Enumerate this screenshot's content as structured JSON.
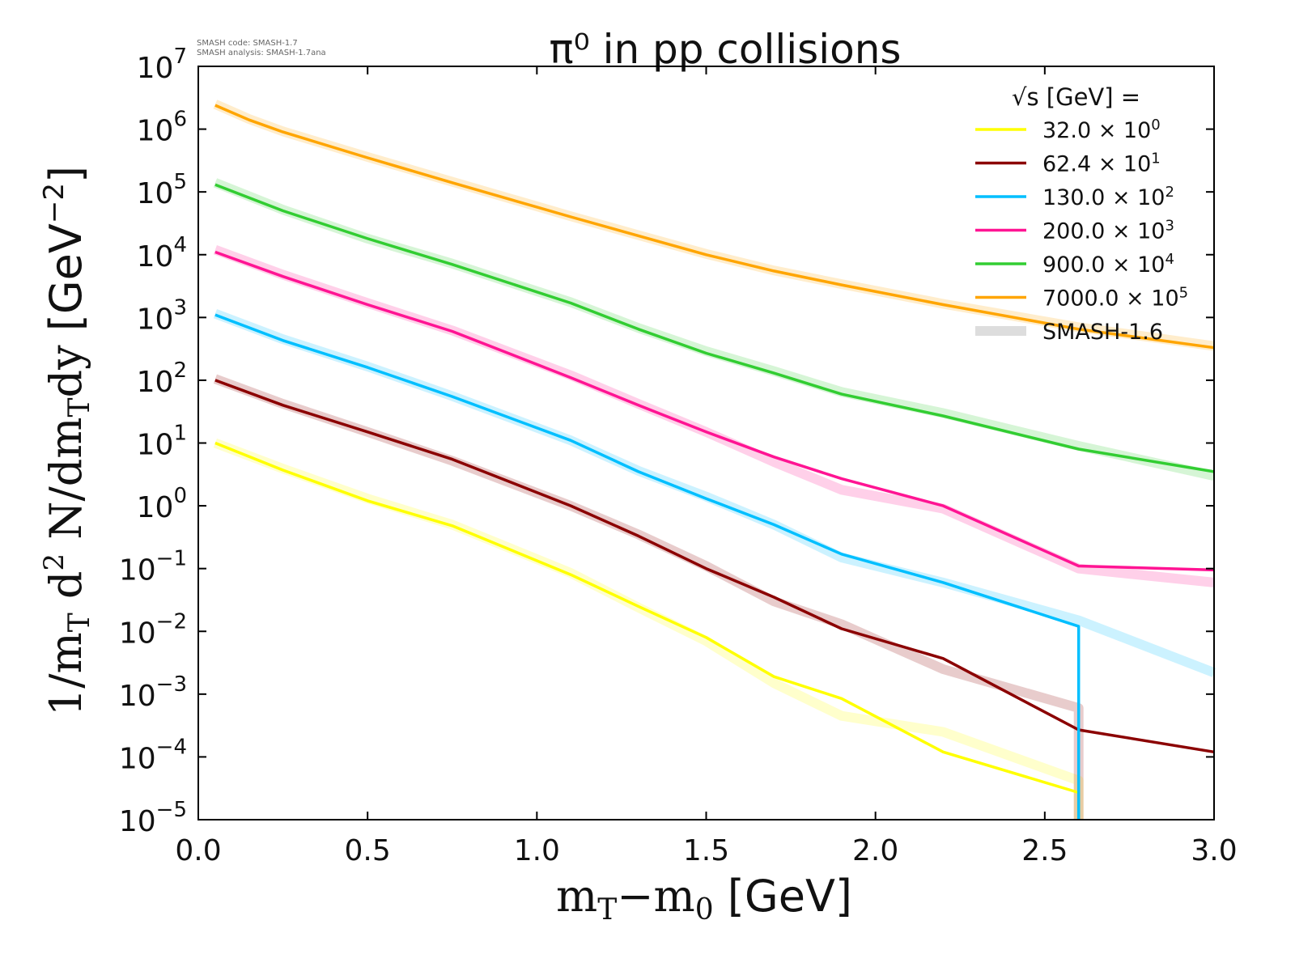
{
  "chart_data": {
    "type": "line",
    "title": "π⁰ in pp collisions",
    "xlabel": "m_T−m_0 [GeV]",
    "ylabel": "1/m_T d^2 N/dm_T dy [GeV^−2]",
    "xlim": [
      0.0,
      3.0
    ],
    "ylim": [
      1e-05,
      10000000.0
    ],
    "y_scale": "log",
    "x_ticks": [
      "0.0",
      "0.5",
      "1.0",
      "1.5",
      "2.0",
      "2.5",
      "3.0"
    ],
    "y_tick_exponents": [
      -5,
      -4,
      -3,
      -2,
      -1,
      0,
      1,
      2,
      3,
      4,
      5,
      6,
      7
    ],
    "grid": false,
    "legend_position": "top-right",
    "legend_title": "√s  [GeV] =",
    "legend_reference_label": "SMASH-1.6",
    "stamp_lines": [
      "SMASH code:      SMASH-1.7",
      "SMASH analysis: SMASH-1.7ana"
    ],
    "series": [
      {
        "name": "32.0",
        "multiplier_exponent": 0,
        "color": "#ffff00",
        "x": [
          0.05,
          0.25,
          0.5,
          0.75,
          1.1,
          1.3,
          1.5,
          1.7,
          1.9,
          2.2,
          2.6,
          2.6
        ],
        "y": [
          10,
          3.7,
          1.2,
          0.48,
          0.08,
          0.025,
          0.008,
          0.0019,
          0.00085,
          0.00012,
          2.7e-05,
          1e-05
        ],
        "ref_x": [
          0.05,
          0.25,
          0.5,
          0.75,
          1.1,
          1.3,
          1.5,
          1.7,
          1.9,
          2.2,
          2.6,
          2.6
        ],
        "ref_y": [
          10,
          3.9,
          1.3,
          0.5,
          0.085,
          0.024,
          0.007,
          0.0015,
          0.00045,
          0.00025,
          4.2e-05,
          1e-05
        ]
      },
      {
        "name": "62.4",
        "multiplier_exponent": 1,
        "color": "#8b0000",
        "x": [
          0.05,
          0.25,
          0.5,
          0.75,
          1.1,
          1.3,
          1.5,
          1.7,
          1.9,
          2.2,
          2.6,
          3.0
        ],
        "y": [
          100,
          40,
          15,
          5.5,
          1.0,
          0.33,
          0.1,
          0.035,
          0.011,
          0.0037,
          0.00027,
          0.00012
        ],
        "ref_x": [
          0.05,
          0.25,
          0.5,
          0.75,
          1.1,
          1.3,
          1.5,
          1.7,
          1.9,
          2.2,
          2.6,
          2.6
        ],
        "ref_y": [
          105,
          42,
          15,
          5.2,
          1.0,
          0.35,
          0.11,
          0.03,
          0.013,
          0.0025,
          0.0006,
          1e-05
        ]
      },
      {
        "name": "130.0",
        "multiplier_exponent": 2,
        "color": "#00bfff",
        "x": [
          0.05,
          0.25,
          0.5,
          0.75,
          1.1,
          1.3,
          1.5,
          1.7,
          1.9,
          2.2,
          2.6,
          2.6
        ],
        "y": [
          1100,
          430,
          160,
          55,
          11,
          3.5,
          1.3,
          0.5,
          0.17,
          0.06,
          0.012,
          1e-05
        ],
        "ref_x": [
          0.05,
          0.25,
          0.5,
          0.75,
          1.1,
          1.3,
          1.5,
          1.7,
          1.9,
          2.2,
          2.6,
          3.0
        ],
        "ref_y": [
          1150,
          450,
          165,
          56,
          11,
          3.6,
          1.4,
          0.5,
          0.15,
          0.06,
          0.015,
          0.0022
        ]
      },
      {
        "name": "200.0",
        "multiplier_exponent": 3,
        "color": "#ff1493",
        "x": [
          0.05,
          0.25,
          0.5,
          0.75,
          1.1,
          1.3,
          1.5,
          1.7,
          1.9,
          2.2,
          2.6,
          3.0
        ],
        "y": [
          11000,
          4500,
          1600,
          600,
          110,
          40,
          15,
          6,
          2.7,
          1.0,
          0.11,
          0.095
        ],
        "ref_x": [
          0.05,
          0.25,
          0.5,
          0.75,
          1.1,
          1.3,
          1.5,
          1.7,
          1.9,
          2.2,
          2.6,
          3.0
        ],
        "ref_y": [
          12000,
          4800,
          1700,
          620,
          120,
          42,
          15,
          5,
          1.8,
          0.9,
          0.1,
          0.06
        ]
      },
      {
        "name": "900.0",
        "multiplier_exponent": 4,
        "color": "#32cd32",
        "x": [
          0.05,
          0.25,
          0.5,
          0.75,
          1.1,
          1.3,
          1.5,
          1.7,
          1.9,
          2.2,
          2.6,
          3.0
        ],
        "y": [
          130000,
          50000,
          18000,
          7000,
          1700,
          650,
          270,
          130,
          60,
          27,
          8,
          3.5
        ],
        "ref_x": [
          0.05,
          0.25,
          0.5,
          0.75,
          1.1,
          1.3,
          1.5,
          1.7,
          1.9,
          2.2,
          2.6,
          3.0
        ],
        "ref_y": [
          140000,
          52000,
          18000,
          7200,
          1750,
          680,
          290,
          140,
          65,
          30,
          9,
          3.0
        ]
      },
      {
        "name": "7000.0",
        "multiplier_exponent": 5,
        "color": "#ffa500",
        "x": [
          0.05,
          0.15,
          0.25,
          0.5,
          0.75,
          1.1,
          1.3,
          1.5,
          1.7,
          1.9,
          2.2,
          2.6,
          3.0
        ],
        "y": [
          2400000,
          1400000,
          900000,
          350000,
          140000,
          40000,
          20000,
          10000,
          5500,
          3300,
          1600,
          650,
          330
        ],
        "ref_x": [
          0.05,
          0.15,
          0.25,
          0.5,
          0.75,
          1.1,
          1.3,
          1.5,
          1.7,
          1.9,
          2.2,
          2.6,
          3.0
        ],
        "ref_y": [
          2500000,
          1450000,
          920000,
          360000,
          145000,
          41000,
          20500,
          10300,
          5600,
          3400,
          1650,
          700,
          350
        ]
      }
    ]
  }
}
